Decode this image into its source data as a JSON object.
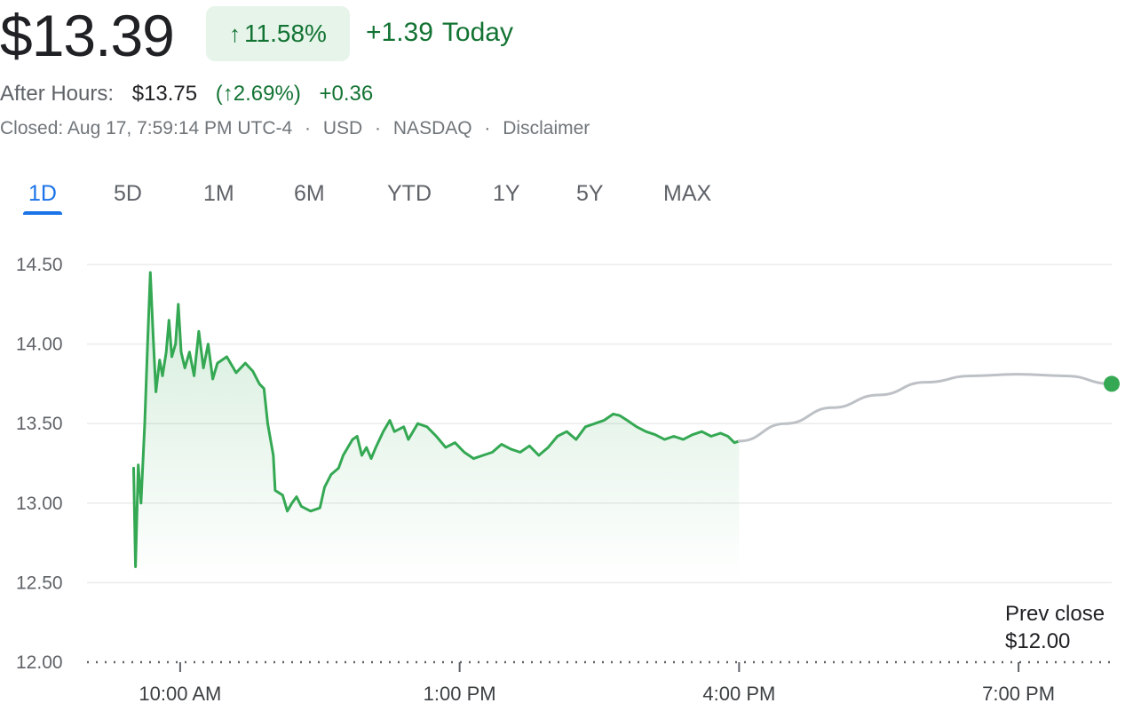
{
  "quote": {
    "price": "$13.39",
    "change_arrow": "↑",
    "change_pct": "11.58%",
    "change_abs": "+1.39",
    "change_period": "Today",
    "up_color": "#137333",
    "chip_bg": "#e6f4ea"
  },
  "after_hours": {
    "label": "After Hours:",
    "price": "$13.75",
    "pct": "(↑2.69%)",
    "change": "+0.36"
  },
  "meta": {
    "closed": "Closed: Aug 17, 7:59:14 PM UTC-4",
    "currency": "USD",
    "exchange": "NASDAQ",
    "disclaimer": "Disclaimer",
    "separator": "·"
  },
  "tabs": [
    {
      "label": "1D",
      "active": true
    },
    {
      "label": "5D",
      "active": false
    },
    {
      "label": "1M",
      "active": false
    },
    {
      "label": "6M",
      "active": false
    },
    {
      "label": "YTD",
      "active": false
    },
    {
      "label": "1Y",
      "active": false
    },
    {
      "label": "5Y",
      "active": false
    },
    {
      "label": "MAX",
      "active": false
    }
  ],
  "prev_close": {
    "label": "Prev close",
    "value": "$12.00"
  },
  "chart_data": {
    "type": "line",
    "x_unit": "hours",
    "x_range": [
      9.0,
      20.0
    ],
    "ylim": [
      12.0,
      14.5
    ],
    "y_ticks": [
      "14.50",
      "14.00",
      "13.50",
      "13.00",
      "12.50",
      "12.00"
    ],
    "x_ticks": [
      {
        "x": 10.0,
        "label": "10:00 AM"
      },
      {
        "x": 13.0,
        "label": "1:00 PM"
      },
      {
        "x": 16.0,
        "label": "4:00 PM"
      },
      {
        "x": 19.0,
        "label": "7:00 PM"
      }
    ],
    "colors": {
      "line": "#34a853",
      "after_hours_line": "#bdc1c6",
      "grid": "#ebebeb",
      "axis_dots": "#5f6368"
    },
    "series": [
      {
        "values": [
          [
            9.5,
            13.22
          ],
          [
            9.52,
            12.6
          ],
          [
            9.55,
            13.24
          ],
          [
            9.58,
            13.0
          ],
          [
            9.62,
            13.5
          ],
          [
            9.65,
            14.0
          ],
          [
            9.68,
            14.45
          ],
          [
            9.71,
            14.05
          ],
          [
            9.74,
            13.7
          ],
          [
            9.78,
            13.9
          ],
          [
            9.81,
            13.8
          ],
          [
            9.85,
            13.95
          ],
          [
            9.88,
            14.15
          ],
          [
            9.91,
            13.92
          ],
          [
            9.95,
            14.0
          ],
          [
            9.98,
            14.25
          ],
          [
            10.01,
            13.95
          ],
          [
            10.05,
            13.85
          ],
          [
            10.1,
            13.95
          ],
          [
            10.15,
            13.8
          ],
          [
            10.2,
            14.08
          ],
          [
            10.25,
            13.85
          ],
          [
            10.3,
            14.0
          ],
          [
            10.35,
            13.78
          ],
          [
            10.4,
            13.88
          ],
          [
            10.5,
            13.92
          ],
          [
            10.6,
            13.82
          ],
          [
            10.7,
            13.88
          ],
          [
            10.78,
            13.83
          ],
          [
            10.85,
            13.75
          ],
          [
            10.9,
            13.72
          ],
          [
            10.94,
            13.5
          ],
          [
            11.0,
            13.3
          ],
          [
            11.02,
            13.08
          ],
          [
            11.1,
            13.05
          ],
          [
            11.15,
            12.95
          ],
          [
            11.2,
            13.0
          ],
          [
            11.25,
            13.04
          ],
          [
            11.3,
            12.98
          ],
          [
            11.4,
            12.95
          ],
          [
            11.5,
            12.97
          ],
          [
            11.55,
            13.1
          ],
          [
            11.62,
            13.18
          ],
          [
            11.7,
            13.22
          ],
          [
            11.75,
            13.3
          ],
          [
            11.8,
            13.35
          ],
          [
            11.85,
            13.4
          ],
          [
            11.9,
            13.42
          ],
          [
            11.95,
            13.3
          ],
          [
            12.0,
            13.35
          ],
          [
            12.05,
            13.28
          ],
          [
            12.1,
            13.35
          ],
          [
            12.18,
            13.45
          ],
          [
            12.25,
            13.52
          ],
          [
            12.3,
            13.45
          ],
          [
            12.4,
            13.48
          ],
          [
            12.45,
            13.4
          ],
          [
            12.55,
            13.5
          ],
          [
            12.65,
            13.48
          ],
          [
            12.75,
            13.42
          ],
          [
            12.85,
            13.35
          ],
          [
            12.95,
            13.38
          ],
          [
            13.05,
            13.32
          ],
          [
            13.15,
            13.28
          ],
          [
            13.25,
            13.3
          ],
          [
            13.35,
            13.32
          ],
          [
            13.45,
            13.37
          ],
          [
            13.55,
            13.34
          ],
          [
            13.65,
            13.32
          ],
          [
            13.75,
            13.36
          ],
          [
            13.85,
            13.3
          ],
          [
            13.95,
            13.35
          ],
          [
            14.05,
            13.42
          ],
          [
            14.15,
            13.45
          ],
          [
            14.25,
            13.4
          ],
          [
            14.35,
            13.48
          ],
          [
            14.45,
            13.5
          ],
          [
            14.55,
            13.52
          ],
          [
            14.65,
            13.56
          ],
          [
            14.72,
            13.55
          ],
          [
            14.8,
            13.52
          ],
          [
            14.9,
            13.48
          ],
          [
            15.0,
            13.45
          ],
          [
            15.1,
            13.43
          ],
          [
            15.2,
            13.4
          ],
          [
            15.3,
            13.42
          ],
          [
            15.4,
            13.4
          ],
          [
            15.5,
            13.43
          ],
          [
            15.6,
            13.45
          ],
          [
            15.7,
            13.42
          ],
          [
            15.8,
            13.44
          ],
          [
            15.88,
            13.42
          ],
          [
            15.95,
            13.38
          ],
          [
            16.0,
            13.39
          ]
        ]
      },
      {
        "values": [
          [
            16.0,
            13.39
          ],
          [
            16.5,
            13.5
          ],
          [
            17.0,
            13.6
          ],
          [
            17.5,
            13.68
          ],
          [
            18.0,
            13.76
          ],
          [
            18.5,
            13.8
          ],
          [
            19.0,
            13.81
          ],
          [
            19.5,
            13.8
          ],
          [
            20.0,
            13.75
          ]
        ]
      }
    ]
  }
}
